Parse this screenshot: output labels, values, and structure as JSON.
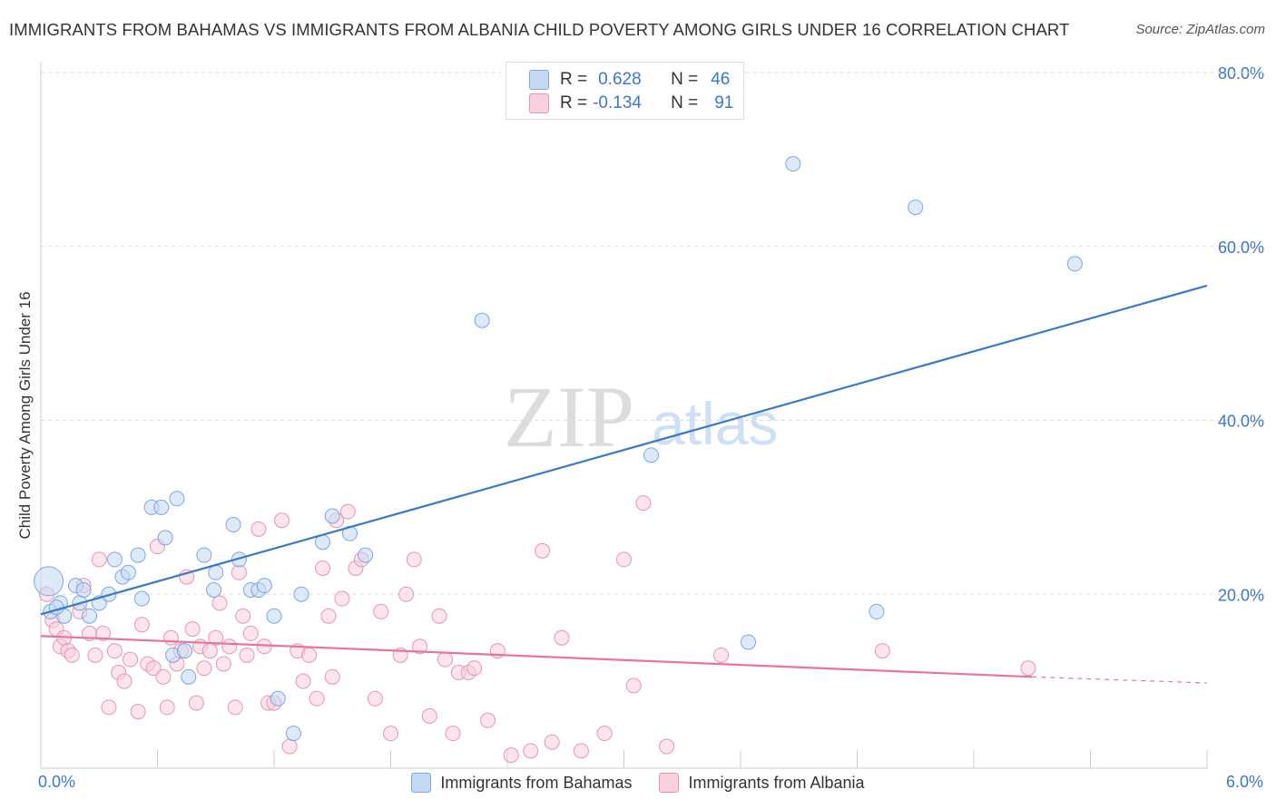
{
  "title": "IMMIGRANTS FROM BAHAMAS VS IMMIGRANTS FROM ALBANIA CHILD POVERTY AMONG GIRLS UNDER 16 CORRELATION CHART",
  "source": "Source: ZipAtlas.com",
  "watermark": {
    "zip": "ZIP",
    "atlas": "atlas"
  },
  "colors": {
    "blue": "#3a78c8",
    "blue_fill": "#c5d9f4",
    "pink": "#e8739c",
    "pink_fill": "#f9d0dd",
    "grid": "#dddddd"
  },
  "stats": [
    {
      "r_label": "R =",
      "r_value": "0.628",
      "n_label": "N =",
      "n_value": "46"
    },
    {
      "r_label": "R =",
      "r_value": "-0.134",
      "n_label": "N =",
      "n_value": "91"
    }
  ],
  "legend": {
    "blue_label": "Immigrants from Bahamas",
    "pink_label": "Immigrants from Albania"
  },
  "chart_data": {
    "type": "scatter",
    "title": "IMMIGRANTS FROM BAHAMAS VS IMMIGRANTS FROM ALBANIA CHILD POVERTY AMONG GIRLS UNDER 16 CORRELATION CHART",
    "xlabel": "",
    "ylabel": "Child Poverty Among Girls Under 16",
    "xlim": [
      0,
      6
    ],
    "ylim": [
      0,
      80
    ],
    "x_tick_labels": [
      "0.0%",
      "6.0%"
    ],
    "y_ticks": [
      20,
      40,
      60,
      80
    ],
    "y_tick_labels": [
      "20.0%",
      "40.0%",
      "60.0%",
      "80.0%"
    ],
    "grid": true,
    "legend_position": "bottom",
    "series": [
      {
        "name": "Immigrants from Bahamas",
        "color": "#3a78c8",
        "trend": {
          "x": [
            0,
            6
          ],
          "y": [
            17.7,
            55.5
          ]
        },
        "points": [
          [
            0.04,
            21.5
          ],
          [
            0.05,
            18.0
          ],
          [
            0.1,
            19.0
          ],
          [
            0.12,
            17.5
          ],
          [
            0.18,
            21.0
          ],
          [
            0.2,
            19.0
          ],
          [
            0.22,
            20.5
          ],
          [
            0.25,
            17.5
          ],
          [
            0.3,
            19.0
          ],
          [
            0.35,
            20.0
          ],
          [
            0.38,
            24.0
          ],
          [
            0.42,
            22.0
          ],
          [
            0.45,
            22.5
          ],
          [
            0.5,
            24.5
          ],
          [
            0.52,
            19.5
          ],
          [
            0.57,
            30.0
          ],
          [
            0.62,
            30.0
          ],
          [
            0.64,
            26.5
          ],
          [
            0.7,
            31.0
          ],
          [
            0.68,
            13.0
          ],
          [
            0.74,
            13.5
          ],
          [
            0.76,
            10.5
          ],
          [
            0.84,
            24.5
          ],
          [
            0.89,
            20.5
          ],
          [
            0.9,
            22.5
          ],
          [
            0.99,
            28.0
          ],
          [
            1.02,
            24.0
          ],
          [
            1.08,
            20.5
          ],
          [
            1.12,
            20.5
          ],
          [
            1.15,
            21.0
          ],
          [
            1.2,
            17.5
          ],
          [
            1.22,
            8.0
          ],
          [
            1.3,
            4.0
          ],
          [
            1.34,
            20.0
          ],
          [
            1.45,
            26.0
          ],
          [
            1.5,
            29.0
          ],
          [
            1.59,
            27.0
          ],
          [
            1.67,
            24.5
          ],
          [
            2.27,
            51.5
          ],
          [
            3.14,
            36.0
          ],
          [
            3.64,
            14.5
          ],
          [
            3.87,
            69.5
          ],
          [
            4.3,
            18.0
          ],
          [
            4.5,
            64.5
          ],
          [
            5.32,
            58.0
          ],
          [
            0.08,
            18.5
          ]
        ]
      },
      {
        "name": "Immigrants from Albania",
        "color": "#e8739c",
        "trend": {
          "x": [
            0,
            5.1
          ],
          "y": [
            15.2,
            10.5
          ]
        },
        "trend_dashed": {
          "x": [
            5.1,
            6
          ],
          "y": [
            10.5,
            9.8
          ]
        },
        "points": [
          [
            0.03,
            20.0
          ],
          [
            0.06,
            17.0
          ],
          [
            0.08,
            16.0
          ],
          [
            0.1,
            14.0
          ],
          [
            0.12,
            15.0
          ],
          [
            0.14,
            13.5
          ],
          [
            0.16,
            13.0
          ],
          [
            0.2,
            18.0
          ],
          [
            0.22,
            21.0
          ],
          [
            0.25,
            15.5
          ],
          [
            0.28,
            13.0
          ],
          [
            0.3,
            24.0
          ],
          [
            0.32,
            15.5
          ],
          [
            0.35,
            7.0
          ],
          [
            0.38,
            13.5
          ],
          [
            0.4,
            11.0
          ],
          [
            0.43,
            10.0
          ],
          [
            0.46,
            12.5
          ],
          [
            0.5,
            6.5
          ],
          [
            0.52,
            16.5
          ],
          [
            0.55,
            12.0
          ],
          [
            0.58,
            11.5
          ],
          [
            0.6,
            25.5
          ],
          [
            0.63,
            10.5
          ],
          [
            0.65,
            7.0
          ],
          [
            0.67,
            15.0
          ],
          [
            0.7,
            12.0
          ],
          [
            0.72,
            13.5
          ],
          [
            0.75,
            22.0
          ],
          [
            0.78,
            16.0
          ],
          [
            0.8,
            7.5
          ],
          [
            0.82,
            14.0
          ],
          [
            0.84,
            11.5
          ],
          [
            0.87,
            13.5
          ],
          [
            0.9,
            15.0
          ],
          [
            0.92,
            19.0
          ],
          [
            0.94,
            12.0
          ],
          [
            0.97,
            14.0
          ],
          [
            1.0,
            7.0
          ],
          [
            1.02,
            22.5
          ],
          [
            1.04,
            17.5
          ],
          [
            1.06,
            13.0
          ],
          [
            1.08,
            15.5
          ],
          [
            1.12,
            27.5
          ],
          [
            1.15,
            14.0
          ],
          [
            1.17,
            7.5
          ],
          [
            1.2,
            7.5
          ],
          [
            1.24,
            28.5
          ],
          [
            1.28,
            2.5
          ],
          [
            1.32,
            13.5
          ],
          [
            1.35,
            10.0
          ],
          [
            1.38,
            13.0
          ],
          [
            1.42,
            8.0
          ],
          [
            1.45,
            23.0
          ],
          [
            1.48,
            17.5
          ],
          [
            1.5,
            10.5
          ],
          [
            1.52,
            28.5
          ],
          [
            1.55,
            19.5
          ],
          [
            1.58,
            29.5
          ],
          [
            1.62,
            23.0
          ],
          [
            1.65,
            24.0
          ],
          [
            1.72,
            8.0
          ],
          [
            1.75,
            18.0
          ],
          [
            1.8,
            4.0
          ],
          [
            1.85,
            13.0
          ],
          [
            1.88,
            20.0
          ],
          [
            1.92,
            24.0
          ],
          [
            1.95,
            14.0
          ],
          [
            2.0,
            6.0
          ],
          [
            2.05,
            17.5
          ],
          [
            2.08,
            12.5
          ],
          [
            2.12,
            4.0
          ],
          [
            2.15,
            11.0
          ],
          [
            2.2,
            11.0
          ],
          [
            2.23,
            11.5
          ],
          [
            2.3,
            5.5
          ],
          [
            2.35,
            13.5
          ],
          [
            2.42,
            1.5
          ],
          [
            2.52,
            2.0
          ],
          [
            2.58,
            25.0
          ],
          [
            2.63,
            3.0
          ],
          [
            2.68,
            15.0
          ],
          [
            2.78,
            2.0
          ],
          [
            2.9,
            4.0
          ],
          [
            3.0,
            24.0
          ],
          [
            3.05,
            9.5
          ],
          [
            3.1,
            30.5
          ],
          [
            3.22,
            2.5
          ],
          [
            3.5,
            13.0
          ],
          [
            4.33,
            13.5
          ],
          [
            5.08,
            11.5
          ]
        ]
      }
    ]
  }
}
